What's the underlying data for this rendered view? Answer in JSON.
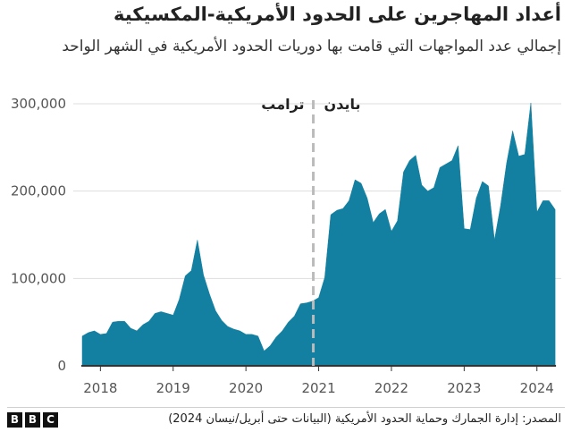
{
  "title": "أعداد المهاجرين على الحدود الأمريكية-المكسيكية",
  "subtitle": "إجمالي عدد المواجهات التي قامت بها دوريات الحدود الأمريكية في الشهر الواحد",
  "source": "المصدر: إدارة الجمارك وحماية الحدود الأمريكية (البيانات حتى أبريل/نيسان 2024)",
  "logo": [
    "B",
    "B",
    "C"
  ],
  "colors": {
    "area": "#1380a1",
    "divider": "#bbbbbb",
    "grid": "#dddddd",
    "axis": "#333333"
  },
  "chart_data": {
    "type": "area",
    "title": "أعداد المهاجرين على الحدود الأمريكية-المكسيكية",
    "subtitle": "إجمالي عدد المواجهات التي قامت بها دوريات الحدود الأمريكية في الشهر الواحد",
    "ylim": [
      0,
      300000
    ],
    "y_ticks": [
      0,
      100000,
      200000,
      300000
    ],
    "y_tick_labels": [
      "0",
      "100,000",
      "200,000",
      "300,000"
    ],
    "x_ticks": [
      2018,
      2019,
      2020,
      2021,
      2022,
      2023,
      2024
    ],
    "x_range": [
      "2017-10",
      "2024-04"
    ],
    "grid": true,
    "annotations": [
      {
        "text": "ترامب",
        "side": "left",
        "x": "2021-01"
      },
      {
        "text": "بايدن",
        "side": "right",
        "x": "2021-01"
      }
    ],
    "divider": "2021-01",
    "x": [
      "2017-10",
      "2017-11",
      "2017-12",
      "2018-01",
      "2018-02",
      "2018-03",
      "2018-04",
      "2018-05",
      "2018-06",
      "2018-07",
      "2018-08",
      "2018-09",
      "2018-10",
      "2018-11",
      "2018-12",
      "2019-01",
      "2019-02",
      "2019-03",
      "2019-04",
      "2019-05",
      "2019-06",
      "2019-07",
      "2019-08",
      "2019-09",
      "2019-10",
      "2019-11",
      "2019-12",
      "2020-01",
      "2020-02",
      "2020-03",
      "2020-04",
      "2020-05",
      "2020-06",
      "2020-07",
      "2020-08",
      "2020-09",
      "2020-10",
      "2020-11",
      "2020-12",
      "2021-01",
      "2021-02",
      "2021-03",
      "2021-04",
      "2021-05",
      "2021-06",
      "2021-07",
      "2021-08",
      "2021-09",
      "2021-10",
      "2021-11",
      "2021-12",
      "2022-01",
      "2022-02",
      "2022-03",
      "2022-04",
      "2022-05",
      "2022-06",
      "2022-07",
      "2022-08",
      "2022-09",
      "2022-10",
      "2022-11",
      "2022-12",
      "2023-01",
      "2023-02",
      "2023-03",
      "2023-04",
      "2023-05",
      "2023-06",
      "2023-07",
      "2023-08",
      "2023-09",
      "2023-10",
      "2023-11",
      "2023-12",
      "2024-01",
      "2024-02",
      "2024-03",
      "2024-04"
    ],
    "values": [
      34000,
      38000,
      40000,
      36000,
      37000,
      50000,
      51000,
      51000,
      43000,
      40000,
      47000,
      51000,
      60000,
      62000,
      60000,
      58000,
      76000,
      103000,
      109000,
      144000,
      104000,
      82000,
      63000,
      52000,
      45000,
      42000,
      40000,
      36000,
      36000,
      34000,
      17000,
      23000,
      33000,
      40000,
      50000,
      57000,
      71000,
      72000,
      74000,
      78000,
      101000,
      173000,
      178000,
      180000,
      189000,
      213000,
      209000,
      192000,
      164000,
      174000,
      179000,
      154000,
      166000,
      222000,
      235000,
      241000,
      207000,
      200000,
      204000,
      227000,
      231000,
      235000,
      252000,
      157000,
      156000,
      192000,
      211000,
      206000,
      144000,
      183000,
      232000,
      269000,
      240000,
      242000,
      301000,
      176000,
      189000,
      189000,
      179000
    ]
  }
}
